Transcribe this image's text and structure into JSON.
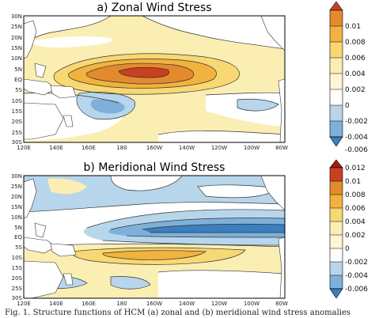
{
  "colors": {
    "scale": [
      "#3a7fbf",
      "#7fb0d9",
      "#b7d6ec",
      "#ffffff",
      "#fbeeb3",
      "#f8d873",
      "#f2b23e",
      "#e48a2e",
      "#c8401f",
      "#a01d16"
    ]
  },
  "caption": "Fig. 1. Structure functions of HCM (a) zonal and (b) meridional wind stress anomalies",
  "panels": [
    {
      "title": "a) Zonal Wind Stress",
      "y_ticks": [
        "30N",
        "25N",
        "20N",
        "15N",
        "10N",
        "5N",
        "EQ",
        "5S",
        "10S",
        "15S",
        "20S",
        "25S",
        "30S"
      ],
      "x_ticks": [
        "120E",
        "140E",
        "160E",
        "180",
        "160W",
        "140W",
        "120W",
        "100W",
        "80W"
      ],
      "colorbar_ticks": [
        "0.01",
        "0.008",
        "0.006",
        "0.004",
        "0.002",
        "0",
        "-0.002",
        "-0.004",
        "-0.006"
      ]
    },
    {
      "title": "b) Meridional Wind Stress",
      "y_ticks": [
        "30N",
        "25N",
        "20N",
        "15N",
        "10N",
        "5N",
        "EQ",
        "5S",
        "10S",
        "15S",
        "20S",
        "25S",
        "30S"
      ],
      "x_ticks": [
        "120E",
        "140E",
        "160E",
        "180",
        "160W",
        "140W",
        "120W",
        "100W",
        "80W"
      ],
      "colorbar_ticks": [
        "0.012",
        "0.01",
        "0.008",
        "0.006",
        "0.004",
        "0.002",
        "0",
        "-0.002",
        "-0.004",
        "-0.006"
      ]
    }
  ]
}
